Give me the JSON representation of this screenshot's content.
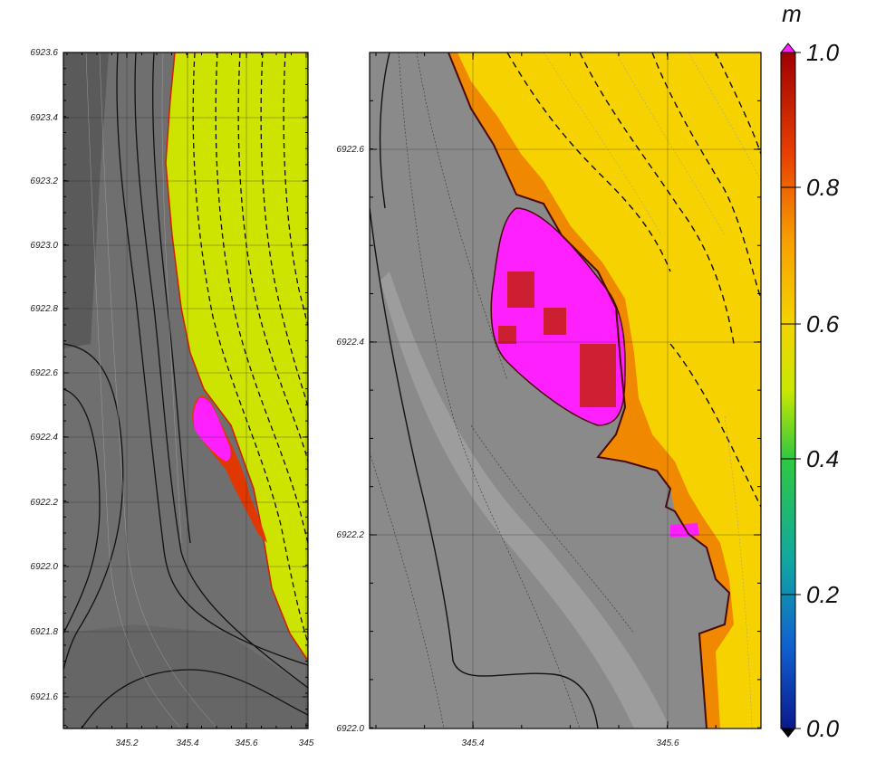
{
  "left_panel": {
    "xticks": [
      "345.2",
      "345.4",
      "345.6",
      "345"
    ],
    "yticks": [
      "6923.6",
      "6923.4",
      "6923.2",
      "6923.0",
      "6922.8",
      "6922.6",
      "6922.4",
      "6922.2",
      "6922.0",
      "6921.8",
      "6921.6"
    ]
  },
  "right_panel": {
    "xticks": [
      "345.4",
      "345.6"
    ],
    "yticks": [
      "6922.6",
      "6922.4",
      "6922.2",
      "6922.0"
    ]
  },
  "colorbar": {
    "unit": "m",
    "ticks": [
      "1.0",
      "0.8",
      "0.6",
      "0.4",
      "0.2",
      "0.0"
    ]
  }
}
